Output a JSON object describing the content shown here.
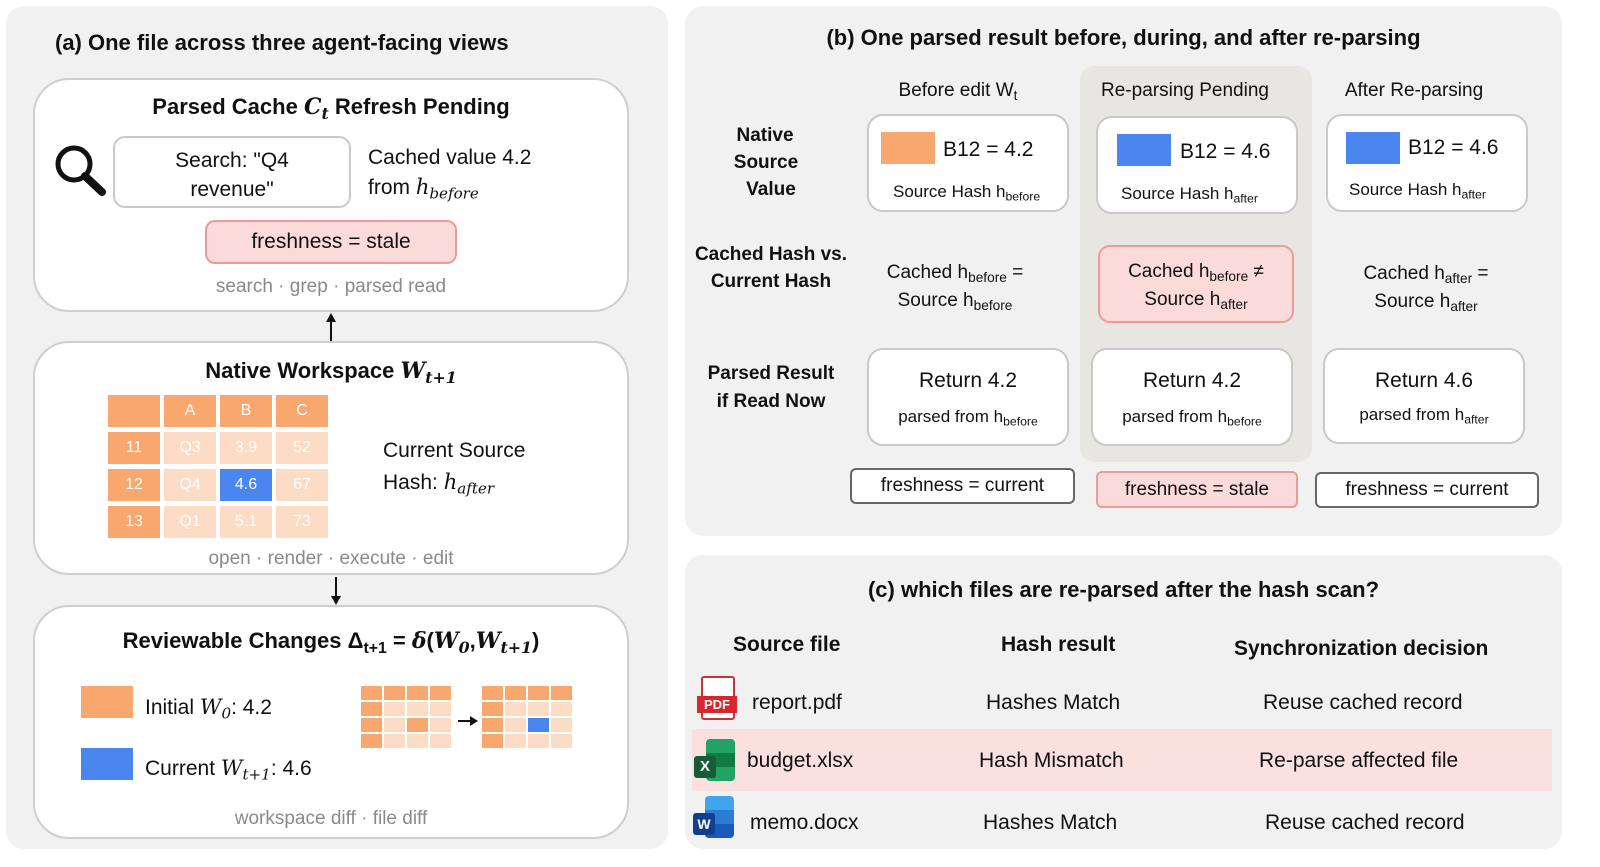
{
  "colors": {
    "panel_bg": "#f1f1f1",
    "orange": "#f8a86e",
    "orange_light": "#fcdcc4",
    "blue": "#4a86ee",
    "pink_bg": "#fbdada",
    "pink_border": "#ef9a9a",
    "gray_text": "#8a8a8a"
  },
  "panel_a": {
    "title": "(a) One file across three agent-facing views",
    "cache": {
      "title_pre": "Parsed Cache ",
      "title_var": "C",
      "title_sub": "t",
      "title_post": " Refresh Pending",
      "icon": "search-icon",
      "search_line1": "Search: \"Q4",
      "search_line2": "revenue\"",
      "cached_line1": "Cached value 4.2",
      "cached_from": "from ",
      "cached_var": "h",
      "cached_sub": "before",
      "freshness": "freshness = stale",
      "footer": "search · grep · parsed read"
    },
    "workspace": {
      "title_pre": "Native Workspace ",
      "title_var": "W",
      "title_sub": "t+1",
      "headers": [
        "",
        "A",
        "B",
        "C"
      ],
      "rows": [
        [
          "11",
          "Q3",
          "3.9",
          "52"
        ],
        [
          "12",
          "Q4",
          "4.6",
          "67"
        ],
        [
          "13",
          "Q1",
          "5.1",
          "73"
        ]
      ],
      "hash_line1": "Current Source",
      "hash_label": "Hash: ",
      "hash_var": "h",
      "hash_sub": "after",
      "footer": "open · render · execute · edit"
    },
    "changes": {
      "title_pre": "Reviewable Changes ",
      "title_delta": "Δ",
      "title_delta_sub": "t+1",
      "title_eq": " = ",
      "title_fn": "δ",
      "title_open": "(",
      "title_w0": "W",
      "title_w0_sub": "0",
      "title_comma": ",",
      "title_w1": "W",
      "title_w1_sub": "t+1",
      "title_close": ")",
      "initial_pre": "Initial ",
      "initial_var": "W",
      "initial_sub": "0",
      "initial_val": ": 4.2",
      "current_pre": "Current ",
      "current_var": "W",
      "current_sub": "t+1",
      "current_val": ": 4.6",
      "footer": "workspace diff · file diff"
    }
  },
  "panel_b": {
    "title": "(b) One parsed result before, during, and after re-parsing",
    "columns": [
      {
        "label": "Before edit W",
        "label_sub": "t"
      },
      {
        "label": "Re-parsing Pending",
        "label_sub": ""
      },
      {
        "label": "After Re-parsing",
        "label_sub": ""
      }
    ],
    "row_labels": {
      "native_1": "Native",
      "native_2": "Source",
      "native_3": "Value",
      "hash_1": "Cached Hash vs.",
      "hash_2": "Current Hash",
      "parsed_1": "Parsed Result",
      "parsed_2": "if Read Now"
    },
    "values": [
      {
        "cell": "B12 = 4.2",
        "src": "Source Hash h",
        "src_sub": "before"
      },
      {
        "cell": "B12 = 4.6",
        "src": "Source Hash h",
        "src_sub": "after"
      },
      {
        "cell": "B12 = 4.6",
        "src": "Source Hash h",
        "src_sub": "after"
      }
    ],
    "hash_compare": [
      {
        "l1": "Cached h",
        "l1_sub": "before",
        "l1_op": " =",
        "l2": "Source h",
        "l2_sub": "before"
      },
      {
        "l1": "Cached h",
        "l1_sub": "before",
        "l1_op": " ≠",
        "l2": "Source h",
        "l2_sub": "after"
      },
      {
        "l1": "Cached h",
        "l1_sub": "after",
        "l1_op": " =",
        "l2": "Source h",
        "l2_sub": "after"
      }
    ],
    "results": [
      {
        "ret": "Return 4.2",
        "from": "parsed from h",
        "from_sub": "before"
      },
      {
        "ret": "Return 4.2",
        "from": "parsed from h",
        "from_sub": "before"
      },
      {
        "ret": "Return 4.6",
        "from": "parsed from h",
        "from_sub": "after"
      }
    ],
    "freshness": [
      "freshness = current",
      "freshness = stale",
      "freshness = current"
    ]
  },
  "panel_c": {
    "title": "(c) which files are re-parsed after the hash scan?",
    "headers": [
      "Source file",
      "Hash result",
      "Synchronization decision"
    ],
    "rows": [
      {
        "icon": "pdf-icon",
        "icon_text": "PDF",
        "file": "report.pdf",
        "hash": "Hashes Match",
        "decision": "Reuse cached record"
      },
      {
        "icon": "excel-icon",
        "icon_text": "X",
        "file": "budget.xlsx",
        "hash": "Hash Mismatch",
        "decision": "Re-parse affected file"
      },
      {
        "icon": "word-icon",
        "icon_text": "W",
        "file": "memo.docx",
        "hash": "Hashes Match",
        "decision": "Reuse cached record"
      }
    ]
  }
}
